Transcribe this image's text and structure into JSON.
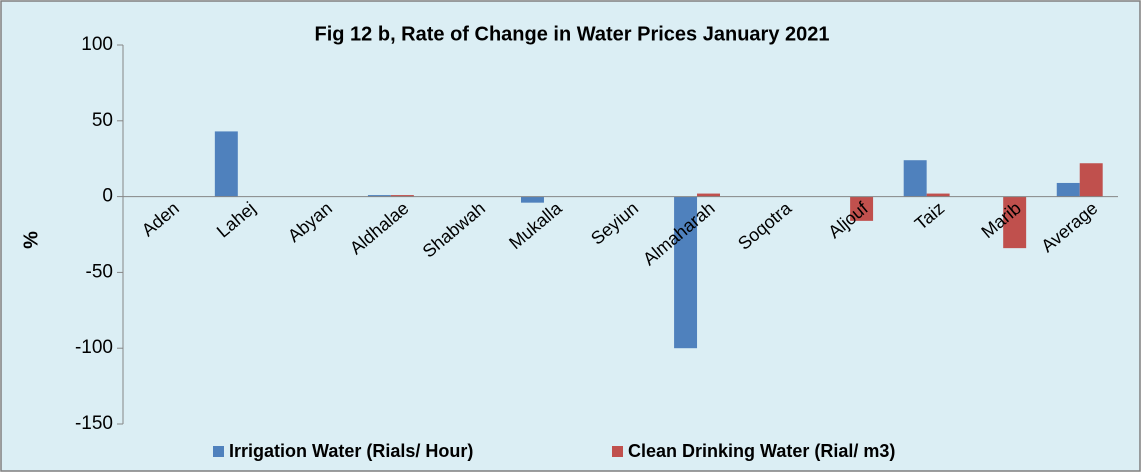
{
  "chart_data": {
    "type": "bar",
    "title": "Fig 12 b, Rate of Change in Water Prices January 2021",
    "y_label": "%",
    "categories": [
      "Aden",
      "Lahej",
      "Abyan",
      "Aldhalae",
      "Shabwah",
      "Mukalla",
      "Seyiun",
      "Almaharah",
      "Soqotra",
      "Aljouf",
      "Taiz",
      "Marib",
      "Average"
    ],
    "series": [
      {
        "name": "Irrigation Water (Rials/ Hour)",
        "color": "#4f81bd",
        "values": [
          0,
          43,
          0,
          1,
          0,
          -4,
          0,
          -100,
          0,
          0,
          24,
          0,
          9
        ]
      },
      {
        "name": "Clean Drinking Water (Rial/ m3)",
        "color": "#c0504d",
        "values": [
          0,
          0,
          0,
          1,
          0,
          0,
          0,
          2,
          0,
          -16,
          2,
          -34,
          22
        ]
      }
    ],
    "ylim": [
      -150,
      100
    ],
    "yticks": [
      -150,
      -100,
      -50,
      0,
      50,
      100
    ],
    "grid": false,
    "legend": "bottom"
  }
}
